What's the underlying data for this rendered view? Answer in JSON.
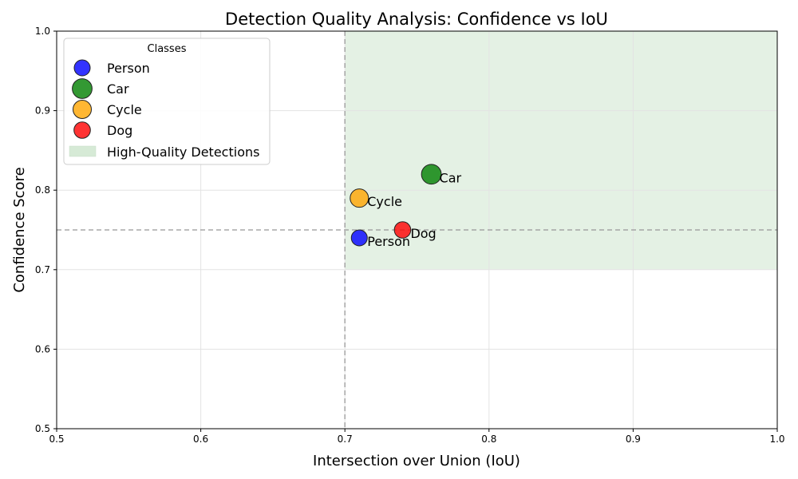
{
  "chart_data": {
    "type": "scatter",
    "title": "Detection Quality Analysis: Confidence vs IoU",
    "xlabel": "Intersection over Union (IoU)",
    "ylabel": "Confidence Score",
    "xlim": [
      0.5,
      1.0
    ],
    "ylim": [
      0.5,
      1.0
    ],
    "xticks": [
      "0.5",
      "0.6",
      "0.7",
      "0.8",
      "0.9",
      "1.0"
    ],
    "yticks": [
      "0.5",
      "0.6",
      "0.7",
      "0.8",
      "0.9",
      "1.0"
    ],
    "grid": true,
    "legend": {
      "title": "Classes",
      "placement": "top-left",
      "region_label": "High-Quality Detections"
    },
    "thresholds": {
      "iou": 0.7,
      "confidence": 0.75
    },
    "region": {
      "x_from": 0.7,
      "x_to": 1.0,
      "y_from": 0.7,
      "y_to": 1.0,
      "color": "#d6ead6"
    },
    "series": [
      {
        "name": "Person",
        "iou": 0.71,
        "confidence": 0.74,
        "color": "#0000ff",
        "size": 0.74
      },
      {
        "name": "Car",
        "iou": 0.76,
        "confidence": 0.82,
        "color": "#008000",
        "size": 0.82
      },
      {
        "name": "Cycle",
        "iou": 0.71,
        "confidence": 0.79,
        "color": "#ffa500",
        "size": 0.79
      },
      {
        "name": "Dog",
        "iou": 0.74,
        "confidence": 0.75,
        "color": "#ff0000",
        "size": 0.75
      }
    ]
  }
}
